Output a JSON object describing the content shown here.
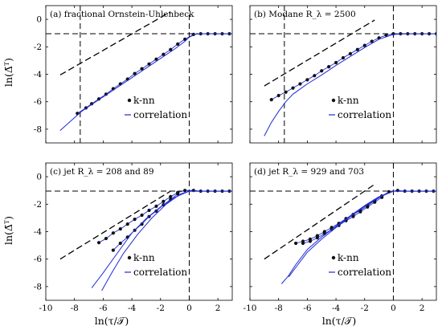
{
  "figure": {
    "xlabel": "ln(τ/𝒯)",
    "ylabel": "ln(Δ̄ᵀ)",
    "x_ticks": [
      -10,
      -8,
      -6,
      -4,
      -2,
      0,
      2
    ],
    "y_ticks": [
      0,
      -2,
      -4,
      -6,
      -8
    ],
    "xlim": [
      -10,
      3
    ],
    "ylim": [
      -9,
      1
    ],
    "colors": {
      "knn": "#111111",
      "correlation": "#1f2bd6",
      "dashed": "#000000"
    }
  },
  "chart_data": [
    {
      "type": "line",
      "label": "(a)  fractional Ornstein-Uhlenbeck",
      "legend": [
        "k-nn",
        "correlation"
      ],
      "legend_position": "lower-middle",
      "reference_lines": {
        "vertical": [
          -7.6,
          0
        ],
        "horizontal": -1.05
      },
      "guide_slope_line": [
        [
          -9,
          -4.05
        ],
        [
          -1.3,
          0.55
        ]
      ],
      "series": [
        {
          "name": "k-nn",
          "style": "markers",
          "x": [
            -7.8,
            -7.2,
            -6.8,
            -6.3,
            -5.8,
            -5.3,
            -4.8,
            -4.3,
            -3.8,
            -3.3,
            -2.8,
            -2.3,
            -1.8,
            -1.3,
            -0.8,
            -0.3,
            0.3,
            0.8,
            1.3,
            1.8,
            2.3,
            2.8
          ],
          "y": [
            -6.85,
            -6.45,
            -6.15,
            -5.8,
            -5.45,
            -5.05,
            -4.7,
            -4.35,
            -3.95,
            -3.6,
            -3.25,
            -2.9,
            -2.55,
            -2.2,
            -1.8,
            -1.45,
            -1.1,
            -1.05,
            -1.05,
            -1.05,
            -1.05,
            -1.05
          ]
        },
        {
          "name": "correlation",
          "style": "line",
          "x": [
            -9,
            -8.2,
            -7.5,
            -6.8,
            -6,
            -5,
            -4,
            -3,
            -2,
            -1,
            -0.3,
            0,
            0.5,
            1.5,
            3
          ],
          "y": [
            -8.1,
            -7.35,
            -6.7,
            -6.2,
            -5.65,
            -4.95,
            -4.25,
            -3.55,
            -2.85,
            -2.15,
            -1.6,
            -1.3,
            -1.05,
            -1.05,
            -1.05
          ]
        }
      ]
    },
    {
      "type": "line",
      "label": "(b)  Modane R_λ = 2500",
      "legend": [
        "k-nn",
        "correlation"
      ],
      "legend_position": "lower-middle",
      "reference_lines": {
        "vertical": [
          -7.6,
          0
        ],
        "horizontal": -1.05
      },
      "guide_slope_line": [
        [
          -9,
          -4.85
        ],
        [
          -1.3,
          -0.05
        ]
      ],
      "series": [
        {
          "name": "k-nn",
          "style": "markers",
          "x": [
            -8.5,
            -8,
            -7.5,
            -7,
            -6.5,
            -6,
            -5.5,
            -5,
            -4.5,
            -4,
            -3.5,
            -3,
            -2.5,
            -2,
            -1.5,
            -1,
            -0.5,
            0,
            0.5,
            1,
            1.5,
            2,
            2.5,
            3
          ],
          "y": [
            -5.85,
            -5.55,
            -5.3,
            -5.0,
            -4.7,
            -4.4,
            -4.1,
            -3.75,
            -3.45,
            -3.15,
            -2.8,
            -2.5,
            -2.2,
            -1.9,
            -1.6,
            -1.35,
            -1.15,
            -1.05,
            -1.05,
            -1.05,
            -1.05,
            -1.05,
            -1.05,
            -1.05
          ]
        },
        {
          "name": "correlation",
          "style": "line",
          "x": [
            -9,
            -8.5,
            -8,
            -7.5,
            -7,
            -6,
            -5,
            -4,
            -3,
            -2,
            -1,
            0,
            1,
            3
          ],
          "y": [
            -8.5,
            -7.5,
            -6.7,
            -6.0,
            -5.45,
            -4.7,
            -4.05,
            -3.35,
            -2.7,
            -2.05,
            -1.45,
            -1.1,
            -1.05,
            -1.05
          ]
        }
      ]
    },
    {
      "type": "line",
      "label": "(c)  jet R_λ = 208 and 89",
      "legend": [
        "k-nn",
        "correlation"
      ],
      "legend_position": "lower-middle",
      "reference_lines": {
        "vertical": [
          0
        ],
        "horizontal": -1.05
      },
      "guide_slope_line": [
        [
          -9,
          -6.0
        ],
        [
          -1.3,
          -1.05
        ]
      ],
      "series": [
        {
          "name": "k-nn (upper)",
          "style": "markers",
          "x": [
            -6.3,
            -5.8,
            -5.3,
            -4.8,
            -4.3,
            -3.8,
            -3.3,
            -2.8,
            -2.3,
            -1.8,
            -1.3,
            -0.8,
            -0.3,
            0.3,
            0.8,
            1.3,
            1.8,
            2.3,
            2.8
          ],
          "y": [
            -4.8,
            -4.5,
            -4.1,
            -3.8,
            -3.45,
            -3.1,
            -2.8,
            -2.45,
            -2.15,
            -1.8,
            -1.45,
            -1.15,
            -1.0,
            -1.0,
            -1.05,
            -1.05,
            -1.05,
            -1.05,
            -1.05
          ]
        },
        {
          "name": "k-nn (lower)",
          "style": "markers",
          "x": [
            -5.3,
            -4.8,
            -4.3,
            -3.8,
            -3.3,
            -2.8,
            -2.3,
            -1.8,
            -1.3,
            -0.8
          ],
          "y": [
            -5.35,
            -4.85,
            -4.4,
            -3.9,
            -3.45,
            -2.9,
            -2.5,
            -2.05,
            -1.65,
            -1.25
          ]
        },
        {
          "name": "correlation (a)",
          "style": "line",
          "x": [
            -6.8,
            -6,
            -5,
            -4,
            -3,
            -2,
            -1,
            0,
            1,
            3
          ],
          "y": [
            -8.1,
            -7.0,
            -5.55,
            -4.1,
            -3.05,
            -2.2,
            -1.5,
            -1.05,
            -1.05,
            -1.05
          ]
        },
        {
          "name": "correlation (b)",
          "style": "line",
          "x": [
            -6.1,
            -5.4,
            -4.6,
            -3.6,
            -2.6,
            -1.6,
            -0.6,
            0,
            1,
            3
          ],
          "y": [
            -8.3,
            -7.0,
            -5.6,
            -4.2,
            -3.0,
            -2.0,
            -1.25,
            -1.05,
            -1.05,
            -1.05
          ]
        }
      ]
    },
    {
      "type": "line",
      "label": "(d)  jet R_λ = 929 and 703",
      "legend": [
        "k-nn",
        "correlation"
      ],
      "legend_position": "lower-middle",
      "reference_lines": {
        "vertical": [
          0
        ],
        "horizontal": -1.05
      },
      "guide_slope_line": [
        [
          -9,
          -6.0
        ],
        [
          -1.3,
          -0.55
        ]
      ],
      "series": [
        {
          "name": "k-nn (upper)",
          "style": "markers",
          "x": [
            -6.8,
            -6.3,
            -5.8,
            -5.3,
            -4.8,
            -4.3,
            -3.8,
            -3.3,
            -2.8,
            -2.3,
            -1.8,
            -1.3,
            -0.8,
            -0.3,
            0.3,
            0.8,
            1.3,
            1.8,
            2.3,
            2.8
          ],
          "y": [
            -4.85,
            -4.7,
            -4.55,
            -4.3,
            -4.0,
            -3.7,
            -3.4,
            -3.05,
            -2.75,
            -2.45,
            -2.1,
            -1.75,
            -1.4,
            -1.1,
            -1.0,
            -1.05,
            -1.05,
            -1.05,
            -1.05,
            -1.05
          ]
        },
        {
          "name": "k-nn (lower)",
          "style": "markers",
          "x": [
            -6.3,
            -5.8,
            -5.3,
            -4.8,
            -4.3,
            -3.8,
            -3.3,
            -2.8,
            -2.3,
            -1.8,
            -1.3,
            -0.8
          ],
          "y": [
            -4.85,
            -4.7,
            -4.45,
            -4.15,
            -3.85,
            -3.55,
            -3.2,
            -2.9,
            -2.55,
            -2.2,
            -1.85,
            -1.5
          ]
        },
        {
          "name": "correlation (a)",
          "style": "line",
          "x": [
            -7.8,
            -7.3,
            -6.8,
            -6,
            -5,
            -4,
            -3,
            -2,
            -1,
            0,
            1,
            3
          ],
          "y": [
            -7.8,
            -7.2,
            -6.4,
            -5.3,
            -4.4,
            -3.6,
            -2.85,
            -2.1,
            -1.45,
            -1.05,
            -1.05,
            -1.05
          ]
        },
        {
          "name": "correlation (b)",
          "style": "line",
          "x": [
            -7.3,
            -6.8,
            -6,
            -5,
            -4,
            -3,
            -2,
            -1,
            0,
            1,
            3
          ],
          "y": [
            -7.3,
            -6.6,
            -5.5,
            -4.55,
            -3.7,
            -2.9,
            -2.15,
            -1.5,
            -1.05,
            -1.05,
            -1.05
          ]
        }
      ]
    }
  ]
}
